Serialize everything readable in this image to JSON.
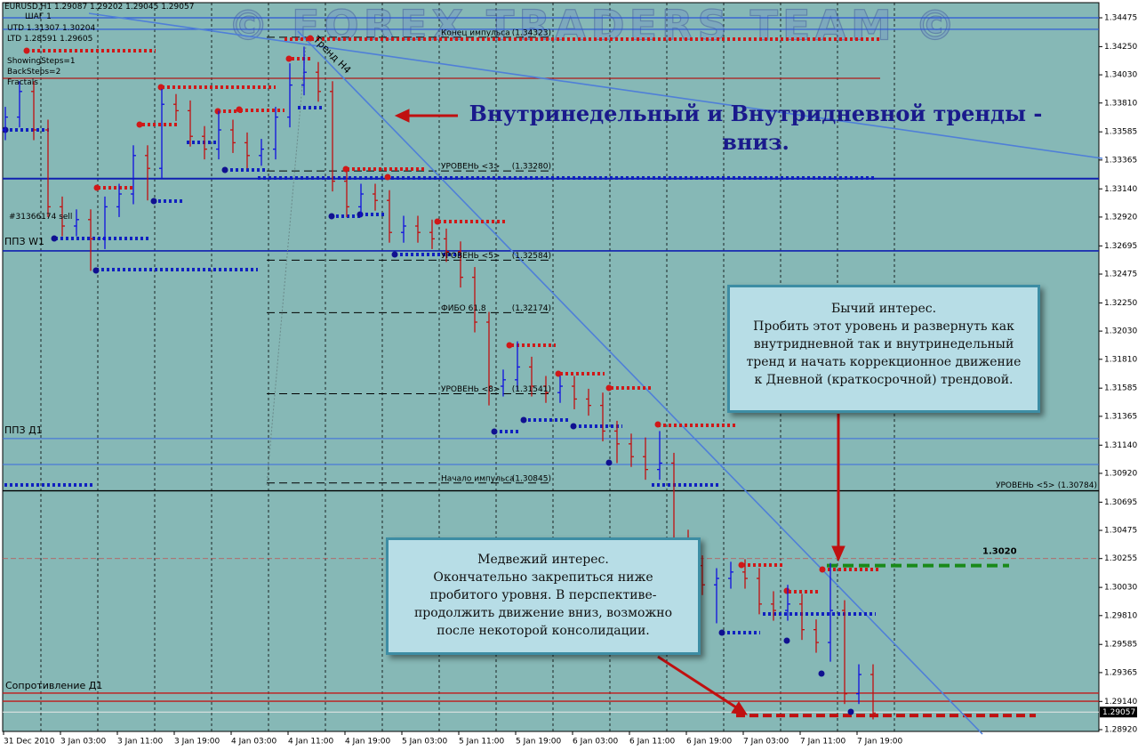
{
  "header": [
    "EURUSD,H1  1.29087 1.29202 1.29045 1.29057",
    "ШАГ 1",
    "UTD  1.31307  1.30204",
    "LTD  1.28591  1.29605",
    "ShowingSteps=1",
    "BackSteps=2",
    "Fractals"
  ],
  "watermark": "© FOREX TRADERS TEAM ©",
  "chart_data": {
    "type": "candlestick",
    "categories": [
      "31 Dec 2010",
      null,
      null,
      null,
      "3 Jan 03:00",
      null,
      null,
      null,
      "3 Jan 11:00",
      null,
      null,
      null,
      "3 Jan 19:00",
      null,
      null,
      null,
      "4 Jan 03:00",
      null,
      null,
      null,
      "4 Jan 11:00",
      null,
      null,
      null,
      "4 Jan 19:00",
      null,
      null,
      null,
      "5 Jan 03:00",
      null,
      null,
      null,
      "5 Jan 11:00",
      null,
      null,
      null,
      "5 Jan 19:00",
      null,
      null,
      null,
      "6 Jan 03:00",
      null,
      null,
      null,
      "6 Jan 11:00",
      null,
      null,
      null,
      "6 Jan 19:00",
      null,
      null,
      null,
      "7 Jan 03:00",
      null,
      null,
      null,
      "7 Jan 11:00",
      null,
      null,
      null,
      "7 Jan 19:00",
      null
    ],
    "open": [
      1.336,
      1.337,
      1.339,
      1.336,
      1.33,
      1.3285,
      1.329,
      1.3275,
      1.33,
      1.331,
      1.334,
      1.333,
      1.338,
      1.3375,
      1.3355,
      1.3345,
      1.336,
      1.335,
      1.334,
      1.3345,
      1.337,
      1.3395,
      1.3405,
      1.339,
      1.332,
      1.33,
      1.331,
      1.3305,
      1.328,
      1.3285,
      1.328,
      1.3275,
      1.3265,
      1.3245,
      1.321,
      1.316,
      1.3165,
      1.3175,
      1.316,
      1.3155,
      1.316,
      1.315,
      1.3145,
      1.3125,
      1.3115,
      1.3105,
      1.3095,
      1.31,
      1.304,
      1.302,
      1.3005,
      1.301,
      1.3015,
      1.301,
      1.299,
      1.2985,
      1.299,
      1.297,
      1.296,
      1.2985,
      1.292,
      1.2935
    ],
    "high": [
      1.3378,
      1.3398,
      1.3398,
      1.3368,
      1.3308,
      1.3298,
      1.3298,
      1.3308,
      1.3318,
      1.3348,
      1.3348,
      1.3392,
      1.3388,
      1.3383,
      1.3363,
      1.3375,
      1.3368,
      1.3358,
      1.3353,
      1.3378,
      1.3412,
      1.3425,
      1.3413,
      1.3398,
      1.3328,
      1.3318,
      1.3318,
      1.3313,
      1.3293,
      1.3293,
      1.329,
      1.3283,
      1.3273,
      1.3253,
      1.3218,
      1.3173,
      1.3195,
      1.3183,
      1.3168,
      1.3168,
      1.3168,
      1.3158,
      1.3155,
      1.3133,
      1.3123,
      1.312,
      1.3125,
      1.3108,
      1.3048,
      1.3028,
      1.3018,
      1.3023,
      1.3025,
      1.3018,
      1.3,
      1.3005,
      1.2998,
      1.2978,
      1.3022,
      1.2993,
      1.2943,
      1.2943
    ],
    "low": [
      1.3352,
      1.3362,
      1.3352,
      1.3292,
      1.3277,
      1.3277,
      1.325,
      1.3267,
      1.3292,
      1.3302,
      1.3305,
      1.3322,
      1.3367,
      1.3347,
      1.3337,
      1.3337,
      1.3342,
      1.333,
      1.3332,
      1.3337,
      1.3362,
      1.3387,
      1.3382,
      1.3312,
      1.3292,
      1.3292,
      1.3297,
      1.3272,
      1.3272,
      1.3272,
      1.3267,
      1.3257,
      1.3237,
      1.3202,
      1.3145,
      1.3152,
      1.3157,
      1.3152,
      1.3147,
      1.3147,
      1.3142,
      1.3137,
      1.3117,
      1.31,
      1.3097,
      1.3087,
      1.3087,
      1.3032,
      1.3012,
      1.2997,
      1.2975,
      1.3002,
      1.3002,
      1.2982,
      1.2977,
      1.2977,
      1.2962,
      1.2952,
      1.2945,
      1.2912,
      1.2912,
      1.29
    ],
    "close": [
      1.337,
      1.339,
      1.336,
      1.33,
      1.3285,
      1.329,
      1.3275,
      1.33,
      1.331,
      1.334,
      1.333,
      1.338,
      1.3375,
      1.3355,
      1.3345,
      1.336,
      1.335,
      1.334,
      1.3345,
      1.337,
      1.3395,
      1.3405,
      1.339,
      1.332,
      1.33,
      1.331,
      1.3305,
      1.328,
      1.3285,
      1.328,
      1.3275,
      1.3265,
      1.3245,
      1.321,
      1.316,
      1.3165,
      1.3175,
      1.316,
      1.3155,
      1.316,
      1.315,
      1.3145,
      1.3125,
      1.3115,
      1.3105,
      1.3095,
      1.31,
      1.304,
      1.302,
      1.3005,
      1.301,
      1.3015,
      1.301,
      1.299,
      1.2985,
      1.299,
      1.297,
      1.296,
      1.2985,
      1.292,
      1.2935,
      1.2905
    ],
    "up_color": "#1010e0",
    "down_color": "#c01010",
    "ylim": [
      1.28906,
      1.34593
    ],
    "yticks": [
      1.34475,
      {
        "value": 1.3425,
        "label": "1.34250"
      },
      {
        "value": 1.3403,
        "label": "1.34030"
      },
      {
        "value": 1.3381,
        "label": "1.33810"
      },
      1.33585,
      1.33365,
      {
        "value": 1.3314,
        "label": "1.33140"
      },
      {
        "value": 1.3292,
        "label": "1.32920"
      },
      1.32695,
      1.32475,
      {
        "value": 1.3225,
        "label": "1.32250"
      },
      {
        "value": 1.3203,
        "label": "1.32030"
      },
      {
        "value": 1.3181,
        "label": "1.31810"
      },
      1.31585,
      1.31365,
      {
        "value": 1.3114,
        "label": "1.31140"
      },
      {
        "value": 1.3092,
        "label": "1.30920"
      },
      1.30695,
      1.30475,
      1.30255,
      {
        "value": 1.3003,
        "label": "1.30030"
      },
      {
        "value": 1.2981,
        "label": "1.29810"
      },
      1.29585,
      1.29365,
      {
        "value": 1.2914,
        "label": "1.29140"
      },
      {
        "value": 1.2892,
        "label": "1.28920"
      }
    ],
    "last_price": 1.29057,
    "levels": [
      {
        "name": "Конец импульса",
        "value": 1.34323,
        "label": "(1.34323)",
        "style": "dashed"
      },
      {
        "name": "УРОВЕНЬ <3>",
        "value": 1.3328,
        "label": "(1.33280)",
        "style": "dashed"
      },
      {
        "name": "УРОВЕНЬ <5>",
        "value": 1.32584,
        "label": "(1.32584)",
        "style": "dashed"
      },
      {
        "name": "ФИБО 61.8",
        "value": 1.32174,
        "label": "(1.32174)",
        "style": "dashed"
      },
      {
        "name": "УРОВЕНЬ <8>",
        "value": 1.31541,
        "label": "(1.31541)",
        "style": "dashed"
      },
      {
        "name": "Начало импульса",
        "value": 1.30845,
        "label": "(1.30845)",
        "style": "dashed"
      },
      {
        "name": "УРОВЕНЬ <5>",
        "value": 1.30784,
        "label": "(1.30784)",
        "style": "solid"
      }
    ],
    "hlines": [
      {
        "value": 1.34475,
        "color": "#2a55d8"
      },
      {
        "value": 1.34385,
        "color": "#2a55d8"
      },
      {
        "value": 1.3322,
        "color": "#1020b0"
      },
      {
        "value": 1.32656,
        "color": "#1020b0"
      },
      {
        "value": 1.34003,
        "color": "#b01818"
      },
      {
        "value": 1.31191,
        "color": "#3a6ae0"
      },
      {
        "value": 1.30989,
        "color": "#3a6ae0"
      },
      {
        "value": 1.29205,
        "color": "#c01818"
      },
      {
        "value": 1.29142,
        "color": "#c01818"
      },
      {
        "value": 1.30255,
        "color": "#c05050"
      },
      {
        "value": 1.2903,
        "color": "#c01010"
      }
    ],
    "target": {
      "value": 1.302,
      "label": "1.3020",
      "color": "#1a8a1a"
    }
  },
  "annotations": {
    "headline": [
      "Внутринедельный и Внутридневной тренды -",
      "вниз."
    ],
    "bull_box": [
      "Бычий интерес.",
      "Пробить этот уровень и развернуть как",
      "внутридневной так и внутринедельный",
      "тренд и начать коррекционное движение",
      "к Дневной (краткосрочной) трендовой."
    ],
    "bear_box": [
      "Медвежий интерес.",
      "Окончательно закрепиться ниже",
      "пробитого уровня. В перспективе-",
      "продолжить движение вниз, возможно",
      "после некоторой консолидации."
    ],
    "order": "#31366174 sell",
    "ppz_w1": "ППЗ W1",
    "ppz_d1": "ППЗ Д1",
    "resistance": "Сопротивление Д1",
    "trend": "Тренд H4"
  }
}
